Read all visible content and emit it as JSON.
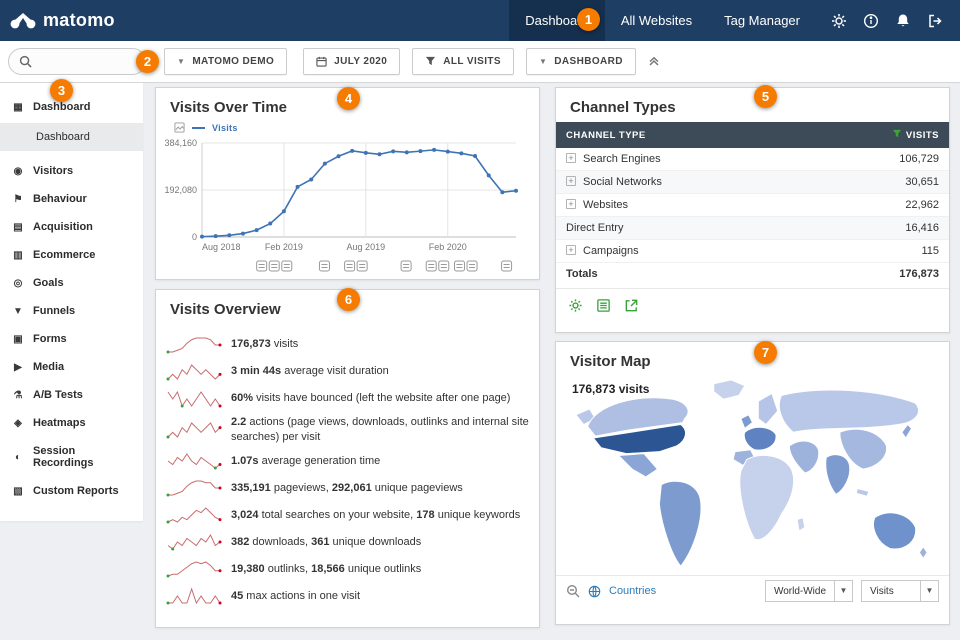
{
  "topbar": {
    "logo_text": "matomo",
    "nav": [
      {
        "label": "Dashboard",
        "active": true
      },
      {
        "label": "All Websites",
        "active": false
      },
      {
        "label": "Tag Manager",
        "active": false
      }
    ]
  },
  "toolbar": {
    "search_placeholder": "",
    "site_selector_label": "MATOMO DEMO",
    "period_selector_label": "JULY 2020",
    "segment_selector_label": "ALL VISITS",
    "dashboard_selector_label": "DASHBOARD"
  },
  "icons": {
    "dashboard-icon": "▦",
    "visitors-icon": "◉",
    "behaviour-icon": "⚑",
    "acquisition-icon": "▤",
    "ecommerce-icon": "▥",
    "goals-icon": "◎",
    "funnels-icon": "▼",
    "forms-icon": "▣",
    "media-icon": "▶",
    "ab-tests-icon": "⚗",
    "heatmaps-icon": "◈",
    "session-recordings-icon": "◐",
    "custom-reports-icon": "▧"
  },
  "sidebar": {
    "items": [
      {
        "label": "Dashboard",
        "icon": "dashboard-icon"
      },
      {
        "label": "Dashboard",
        "sub": true,
        "active": true
      },
      {
        "label": "Visitors",
        "icon": "visitors-icon"
      },
      {
        "label": "Behaviour",
        "icon": "behaviour-icon"
      },
      {
        "label": "Acquisition",
        "icon": "acquisition-icon"
      },
      {
        "label": "Ecommerce",
        "icon": "ecommerce-icon"
      },
      {
        "label": "Goals",
        "icon": "goals-icon"
      },
      {
        "label": "Funnels",
        "icon": "funnels-icon"
      },
      {
        "label": "Forms",
        "icon": "forms-icon"
      },
      {
        "label": "Media",
        "icon": "media-icon"
      },
      {
        "label": "A/B Tests",
        "icon": "ab-tests-icon"
      },
      {
        "label": "Heatmaps",
        "icon": "heatmaps-icon"
      },
      {
        "label": "Session Recordings",
        "icon": "session-recordings-icon"
      },
      {
        "label": "Custom Reports",
        "icon": "custom-reports-icon"
      }
    ]
  },
  "widgets": {
    "visits_over_time": {
      "title": "Visits Over Time",
      "legend_label": "Visits",
      "chart_data": {
        "type": "line",
        "series": [
          {
            "name": "Visits",
            "color": "#3e74b5",
            "values": [
              1500,
              3500,
              7000,
              14000,
              28000,
              55000,
              105000,
              205000,
              235000,
              300000,
              330000,
              352000,
              344000,
              338000,
              350000,
              346000,
              351000,
              356000,
              349000,
              342000,
              331000,
              252000,
              183000,
              189000
            ]
          }
        ],
        "x_count": 24,
        "x_ticks": [
          {
            "index": 0,
            "label": "Aug 2018"
          },
          {
            "index": 6,
            "label": "Feb 2019"
          },
          {
            "index": 12,
            "label": "Aug 2019"
          },
          {
            "index": 18,
            "label": "Feb 2020"
          }
        ],
        "ylim": [
          0,
          384160
        ],
        "y_ticks": [
          {
            "value": 0,
            "label": "0"
          },
          {
            "value": 192080,
            "label": "192,080"
          },
          {
            "value": 384160,
            "label": "384,160"
          }
        ],
        "grid": true,
        "legend_position": "top-left"
      },
      "annotation_marker_positions": [
        0.19,
        0.23,
        0.27,
        0.39,
        0.47,
        0.51,
        0.65,
        0.73,
        0.77,
        0.82,
        0.86,
        0.97
      ]
    },
    "channel_types": {
      "title": "Channel Types",
      "columns": [
        "CHANNEL TYPE",
        "VISITS"
      ],
      "rows": [
        {
          "label": "Search Engines",
          "visits": "106,729",
          "expandable": true
        },
        {
          "label": "Social Networks",
          "visits": "30,651",
          "expandable": true
        },
        {
          "label": "Websites",
          "visits": "22,962",
          "expandable": true
        },
        {
          "label": "Direct Entry",
          "visits": "16,416",
          "expandable": false
        },
        {
          "label": "Campaigns",
          "visits": "115",
          "expandable": true
        },
        {
          "label": "Totals",
          "visits": "176,873",
          "expandable": false,
          "total": true
        }
      ]
    },
    "visits_overview": {
      "title": "Visits Overview",
      "rows": [
        {
          "spark": [
            1,
            1,
            2,
            3,
            6,
            8,
            9,
            9,
            9,
            8,
            5,
            5
          ],
          "parts": [
            [
              "b",
              "176,873"
            ],
            [
              "t",
              " visits"
            ]
          ]
        },
        {
          "spark": [
            4,
            5,
            4,
            6,
            5,
            7,
            6,
            5,
            6,
            5,
            4,
            5
          ],
          "parts": [
            [
              "b",
              "3 min 44s"
            ],
            [
              "t",
              " average visit duration"
            ]
          ]
        },
        {
          "spark": [
            6,
            5,
            6,
            4,
            5,
            4,
            5,
            6,
            5,
            4,
            5,
            4
          ],
          "parts": [
            [
              "b",
              "60%"
            ],
            [
              "t",
              " visits have bounced (left the website after one page)"
            ]
          ]
        },
        {
          "spark": [
            3,
            4,
            3,
            5,
            4,
            6,
            5,
            4,
            5,
            6,
            4,
            5
          ],
          "parts": [
            [
              "b",
              "2.2"
            ],
            [
              "t",
              " actions (page views, downloads, outlinks and internal site searches) per visit"
            ]
          ]
        },
        {
          "spark": [
            5,
            4,
            6,
            5,
            7,
            5,
            4,
            6,
            5,
            4,
            3,
            4
          ],
          "parts": [
            [
              "b",
              "1.07s"
            ],
            [
              "t",
              " average generation time"
            ]
          ]
        },
        {
          "spark": [
            1,
            1,
            2,
            3,
            6,
            8,
            9,
            9,
            8,
            8,
            5,
            5
          ],
          "parts": [
            [
              "b",
              "335,191"
            ],
            [
              "t",
              " pageviews, "
            ],
            [
              "b",
              "292,061"
            ],
            [
              "t",
              " unique pageviews"
            ]
          ]
        },
        {
          "spark": [
            2,
            3,
            2,
            4,
            3,
            5,
            7,
            6,
            8,
            6,
            4,
            3
          ],
          "parts": [
            [
              "b",
              "3,024"
            ],
            [
              "t",
              " total searches on your website, "
            ],
            [
              "b",
              "178"
            ],
            [
              "t",
              " unique keywords"
            ]
          ]
        },
        {
          "spark": [
            3,
            2,
            4,
            3,
            5,
            4,
            3,
            5,
            4,
            6,
            3,
            4
          ],
          "parts": [
            [
              "b",
              "382"
            ],
            [
              "t",
              " downloads, "
            ],
            [
              "b",
              "361"
            ],
            [
              "t",
              " unique downloads"
            ]
          ]
        },
        {
          "spark": [
            1,
            2,
            2,
            4,
            6,
            8,
            9,
            8,
            9,
            7,
            4,
            4
          ],
          "parts": [
            [
              "b",
              "19,380"
            ],
            [
              "t",
              " outlinks, "
            ],
            [
              "b",
              "18,566"
            ],
            [
              "t",
              " unique outlinks"
            ]
          ]
        },
        {
          "spark": [
            4,
            4,
            5,
            4,
            4,
            6,
            4,
            5,
            4,
            4,
            5,
            4
          ],
          "parts": [
            [
              "b",
              "45"
            ],
            [
              "t",
              " max actions in one visit"
            ]
          ]
        }
      ]
    },
    "visitor_map": {
      "title": "Visitor Map",
      "visits_label": "176,873 visits",
      "countries_link": "Countries",
      "region_select": "World-Wide",
      "metric_select": "Visits"
    }
  },
  "annotations": [
    "1",
    "2",
    "3",
    "4",
    "5",
    "6",
    "7"
  ]
}
